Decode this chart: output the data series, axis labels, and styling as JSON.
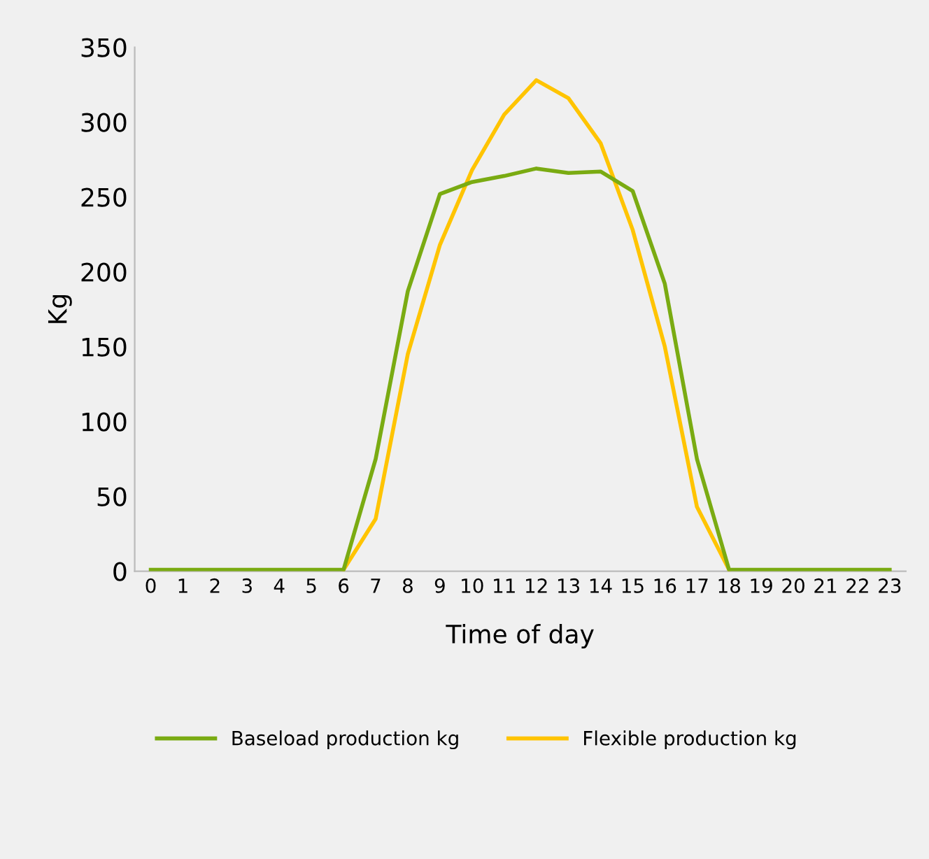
{
  "chart_data": {
    "type": "line",
    "xlabel": "Time of day",
    "ylabel": "Kg",
    "categories": [
      "0",
      "1",
      "2",
      "3",
      "4",
      "5",
      "6",
      "7",
      "8",
      "9",
      "10",
      "11",
      "12",
      "13",
      "14",
      "15",
      "16",
      "17",
      "18",
      "19",
      "20",
      "21",
      "22",
      "23"
    ],
    "series": [
      {
        "name": "Baseload production kg",
        "color": "#7aab12",
        "values": [
          1,
          1,
          1,
          1,
          1,
          1,
          1,
          75,
          187,
          252,
          260,
          264,
          269,
          266,
          267,
          254,
          192,
          75,
          1,
          1,
          1,
          1,
          1,
          1
        ]
      },
      {
        "name": "Flexible production kg",
        "color": "#ffc400",
        "values": [
          null,
          null,
          null,
          null,
          null,
          null,
          1,
          35,
          145,
          218,
          268,
          305,
          328,
          316,
          286,
          228,
          150,
          43,
          1,
          null,
          null,
          null,
          null,
          null
        ]
      }
    ],
    "ylim": [
      0,
      350
    ],
    "yticks": [
      0,
      50,
      100,
      150,
      200,
      250,
      300,
      350
    ],
    "grid": false,
    "legend": "bottom",
    "marker": "none",
    "line_style": "solid"
  }
}
